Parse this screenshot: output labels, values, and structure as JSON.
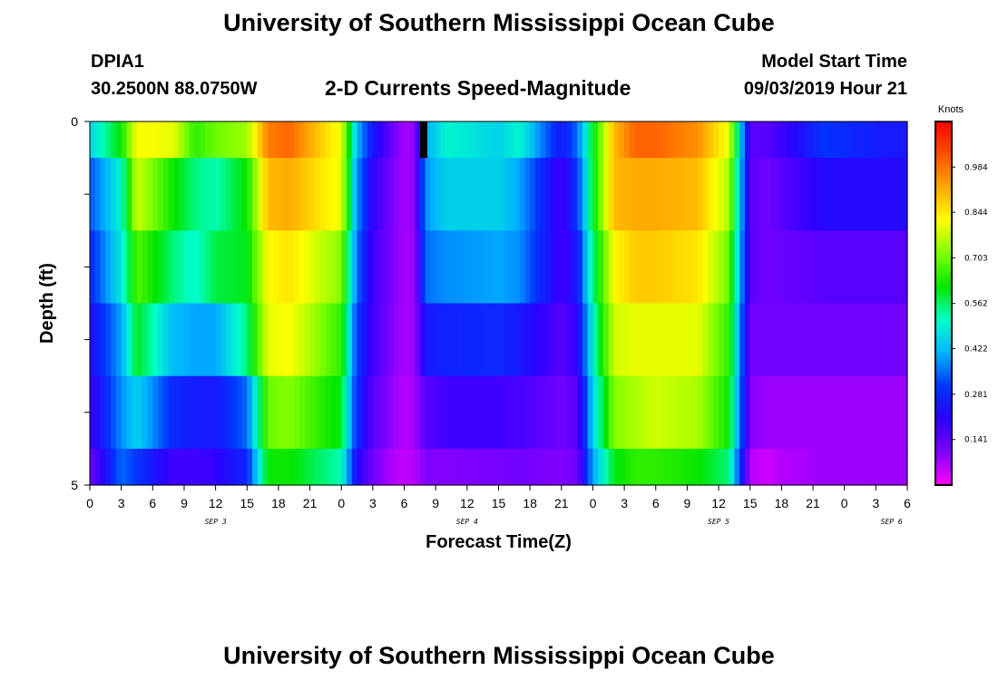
{
  "header": {
    "title": "University of Southern Mississippi Ocean Cube",
    "station": "DPIA1",
    "coords": "30.2500N 88.0750W",
    "subtitle": "2-D Currents Speed-Magnitude",
    "start_label": "Model Start Time",
    "start_time": "09/03/2019 Hour 21"
  },
  "footer": {
    "title": "University of Southern Mississippi Ocean Cube"
  },
  "chart_data": {
    "type": "heatmap",
    "title": "2-D Currents Speed-Magnitude",
    "xlabel": "Forecast Time(Z)",
    "ylabel": "Depth (ft)",
    "x_start": "09/03/2019 00Z",
    "x_step_hours": 1,
    "xlim": [
      0,
      78
    ],
    "ylim": [
      0,
      5
    ],
    "x_tick_labels": [
      "0",
      "3",
      "6",
      "9",
      "12",
      "15",
      "18",
      "21",
      "0",
      "3",
      "6",
      "9",
      "12",
      "15",
      "18",
      "21",
      "0",
      "3",
      "6",
      "9",
      "12",
      "15",
      "18",
      "21",
      "0",
      "3",
      "6"
    ],
    "date_labels": [
      {
        "label": "SEP 3",
        "hour": 12
      },
      {
        "label": "SEP 4",
        "hour": 36
      },
      {
        "label": "SEP 5",
        "hour": 60
      },
      {
        "label": "SEP 6",
        "hour": 76.5
      }
    ],
    "y_tick_labels": [
      "0",
      "5"
    ],
    "y_ticks": [
      0,
      1,
      2,
      3,
      4,
      5
    ],
    "colorbar": {
      "label": "Knots",
      "min": 0,
      "max": 1.125,
      "ticks": [
        "0.141",
        "0.281",
        "0.422",
        "0.562",
        "0.703",
        "0.844",
        "0.984"
      ],
      "tick_values": [
        0.141,
        0.281,
        0.422,
        0.562,
        0.703,
        0.844,
        0.984
      ]
    },
    "depth_layers": [
      {
        "depth": "0-0.4",
        "hours": [
          0,
          3,
          4.5,
          8,
          10,
          12,
          15,
          17,
          19,
          24,
          25.5,
          27,
          29,
          30,
          31,
          32,
          34,
          39,
          41,
          45,
          46.5,
          48,
          50,
          52,
          54,
          58,
          61,
          63,
          64.5,
          66,
          70,
          76,
          78
        ],
        "values": [
          0.45,
          0.62,
          0.82,
          0.8,
          0.65,
          0.7,
          0.74,
          0.97,
          1.0,
          0.8,
          0.42,
          0.25,
          0.12,
          0.07,
          0.09,
          0.4,
          0.5,
          0.45,
          0.5,
          0.25,
          0.35,
          0.6,
          0.9,
          1.0,
          1.0,
          0.95,
          0.8,
          0.15,
          0.15,
          0.18,
          0.3,
          0.25,
          0.25
        ]
      },
      {
        "depth": "0.4-1.5",
        "hours": [
          0,
          3,
          4.5,
          8,
          10,
          12,
          15,
          17,
          19,
          24,
          25.5,
          27,
          29,
          30,
          31,
          32,
          34,
          39,
          41,
          45,
          46.5,
          48,
          50,
          52,
          54,
          58,
          61,
          63,
          64.5,
          66,
          70,
          76,
          78
        ],
        "values": [
          0.33,
          0.5,
          0.78,
          0.62,
          0.55,
          0.52,
          0.62,
          0.9,
          0.92,
          0.8,
          0.38,
          0.2,
          0.1,
          0.07,
          0.09,
          0.38,
          0.45,
          0.45,
          0.4,
          0.18,
          0.3,
          0.6,
          0.9,
          0.92,
          0.92,
          0.9,
          0.75,
          0.15,
          0.12,
          0.15,
          0.22,
          0.22,
          0.22
        ]
      },
      {
        "depth": "1.5-2.5",
        "hours": [
          0,
          3,
          4.5,
          8,
          10,
          12,
          15,
          17,
          19,
          24,
          25.5,
          27,
          29,
          30,
          31,
          32,
          34,
          39,
          41,
          45,
          46.5,
          48,
          50,
          52,
          54,
          58,
          61,
          63,
          64.5,
          66,
          70,
          76,
          78
        ],
        "values": [
          0.28,
          0.48,
          0.68,
          0.55,
          0.5,
          0.58,
          0.6,
          0.82,
          0.85,
          0.72,
          0.35,
          0.18,
          0.1,
          0.07,
          0.08,
          0.35,
          0.38,
          0.4,
          0.38,
          0.18,
          0.25,
          0.55,
          0.82,
          0.88,
          0.88,
          0.85,
          0.7,
          0.15,
          0.12,
          0.13,
          0.15,
          0.15,
          0.15
        ]
      },
      {
        "depth": "2.5-3.5",
        "hours": [
          0,
          3,
          4.5,
          8,
          10,
          12,
          15,
          17,
          19,
          24,
          25.5,
          27,
          29,
          30,
          31,
          32,
          34,
          39,
          41,
          45,
          46.5,
          48,
          50,
          52,
          54,
          58,
          61,
          63,
          64.5,
          66,
          70,
          76,
          78
        ],
        "values": [
          0.22,
          0.4,
          0.6,
          0.42,
          0.4,
          0.4,
          0.55,
          0.8,
          0.82,
          0.65,
          0.3,
          0.18,
          0.09,
          0.07,
          0.08,
          0.25,
          0.27,
          0.28,
          0.25,
          0.15,
          0.2,
          0.5,
          0.78,
          0.8,
          0.8,
          0.8,
          0.65,
          0.12,
          0.12,
          0.12,
          0.12,
          0.12,
          0.12
        ]
      },
      {
        "depth": "3.5-4.5",
        "hours": [
          0,
          3,
          4.5,
          8,
          10,
          12,
          15,
          17,
          19,
          24,
          25.5,
          27,
          29,
          30,
          31,
          32,
          34,
          39,
          41,
          45,
          46.5,
          48,
          50,
          52,
          54,
          58,
          61,
          63,
          64.5,
          66,
          70,
          76,
          78
        ],
        "values": [
          0.18,
          0.38,
          0.45,
          0.28,
          0.26,
          0.25,
          0.35,
          0.7,
          0.72,
          0.6,
          0.28,
          0.15,
          0.08,
          0.06,
          0.07,
          0.15,
          0.18,
          0.18,
          0.17,
          0.12,
          0.15,
          0.45,
          0.72,
          0.75,
          0.78,
          0.75,
          0.62,
          0.1,
          0.08,
          0.08,
          0.08,
          0.08,
          0.08
        ]
      },
      {
        "depth": "4.5-5",
        "hours": [
          0,
          3,
          4.5,
          8,
          10,
          12,
          15,
          17,
          19,
          24,
          25.5,
          27,
          29,
          30,
          31,
          32,
          34,
          39,
          41,
          45,
          46.5,
          48,
          50,
          52,
          54,
          58,
          61,
          63,
          64.5,
          66,
          70,
          76,
          78
        ],
        "values": [
          0.12,
          0.35,
          0.3,
          0.18,
          0.18,
          0.2,
          0.28,
          0.62,
          0.62,
          0.52,
          0.22,
          0.12,
          0.06,
          0.05,
          0.06,
          0.1,
          0.1,
          0.11,
          0.12,
          0.1,
          0.12,
          0.4,
          0.6,
          0.65,
          0.65,
          0.62,
          0.55,
          0.06,
          0.04,
          0.06,
          0.08,
          0.08,
          0.08
        ]
      }
    ],
    "missing_cells": [
      {
        "hour_start": 31.5,
        "hour_end": 32.2,
        "depth_start": 0,
        "depth_end": 0.5
      }
    ],
    "colors": {
      "scale": [
        "#ff00ff",
        "#7f00ff",
        "#2c00ff",
        "#0036ff",
        "#00b3ff",
        "#00ffc8",
        "#00e600",
        "#7fff00",
        "#ffff00",
        "#ffaa00",
        "#ff5000",
        "#ff0000"
      ],
      "missing": "#000000"
    }
  }
}
